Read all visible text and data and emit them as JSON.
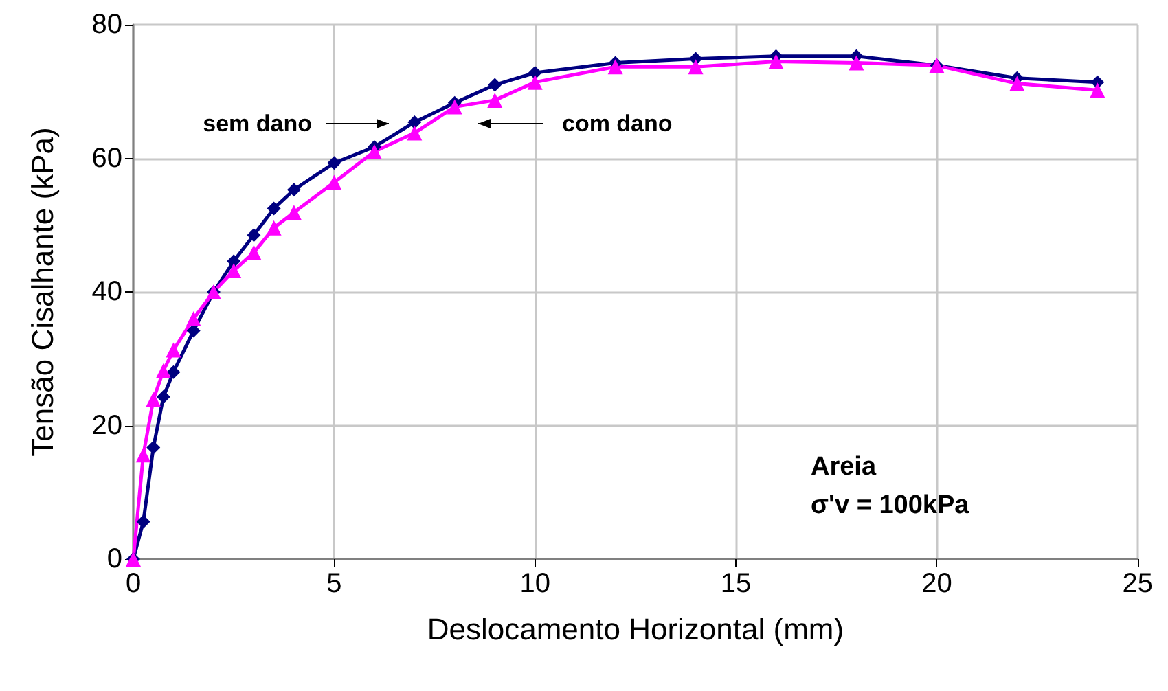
{
  "chart_data": {
    "type": "line",
    "xlabel": "Deslocamento Horizontal (mm)",
    "ylabel": "Tensão Cisalhante (kPa)",
    "xlim": [
      0,
      25
    ],
    "xticks": [
      0,
      5,
      10,
      15,
      20,
      25
    ],
    "ylim": [
      0,
      80
    ],
    "yticks": [
      0,
      20,
      40,
      60,
      80
    ],
    "grid": true,
    "series": [
      {
        "color": "#000080",
        "marker": "diamond",
        "x": [
          0,
          0.25,
          0.5,
          0.75,
          1,
          1.5,
          2,
          2.5,
          3,
          3.5,
          4,
          5,
          6,
          7,
          8,
          9,
          10,
          12,
          14,
          16,
          18,
          20,
          22,
          24
        ],
        "values": [
          0,
          5.6,
          16.7,
          24.3,
          28,
          34.2,
          40,
          44.6,
          48.5,
          52.5,
          55.3,
          59.3,
          61.7,
          65.4,
          68.3,
          71,
          72.8,
          74.3,
          74.9,
          75.3,
          75.3,
          73.9,
          72,
          71.4
        ]
      },
      {
        "color": "#ff00ff",
        "marker": "triangle",
        "x": [
          0,
          0.25,
          0.5,
          0.75,
          1,
          1.5,
          2,
          2.5,
          3,
          3.5,
          4,
          5,
          6,
          7,
          8,
          9,
          10,
          12,
          14,
          16,
          18,
          20,
          22,
          24
        ],
        "values": [
          0,
          15.6,
          23.9,
          28.2,
          31.3,
          36,
          40,
          43.2,
          45.9,
          49.6,
          51.9,
          56.4,
          61,
          63.8,
          67.7,
          68.7,
          71.4,
          73.7,
          73.7,
          74.5,
          74.3,
          73.9,
          71.2,
          70.2
        ]
      }
    ],
    "annotations": [
      "sem dano",
      "com dano",
      "Areia\nσ'v = 100kPa"
    ]
  }
}
